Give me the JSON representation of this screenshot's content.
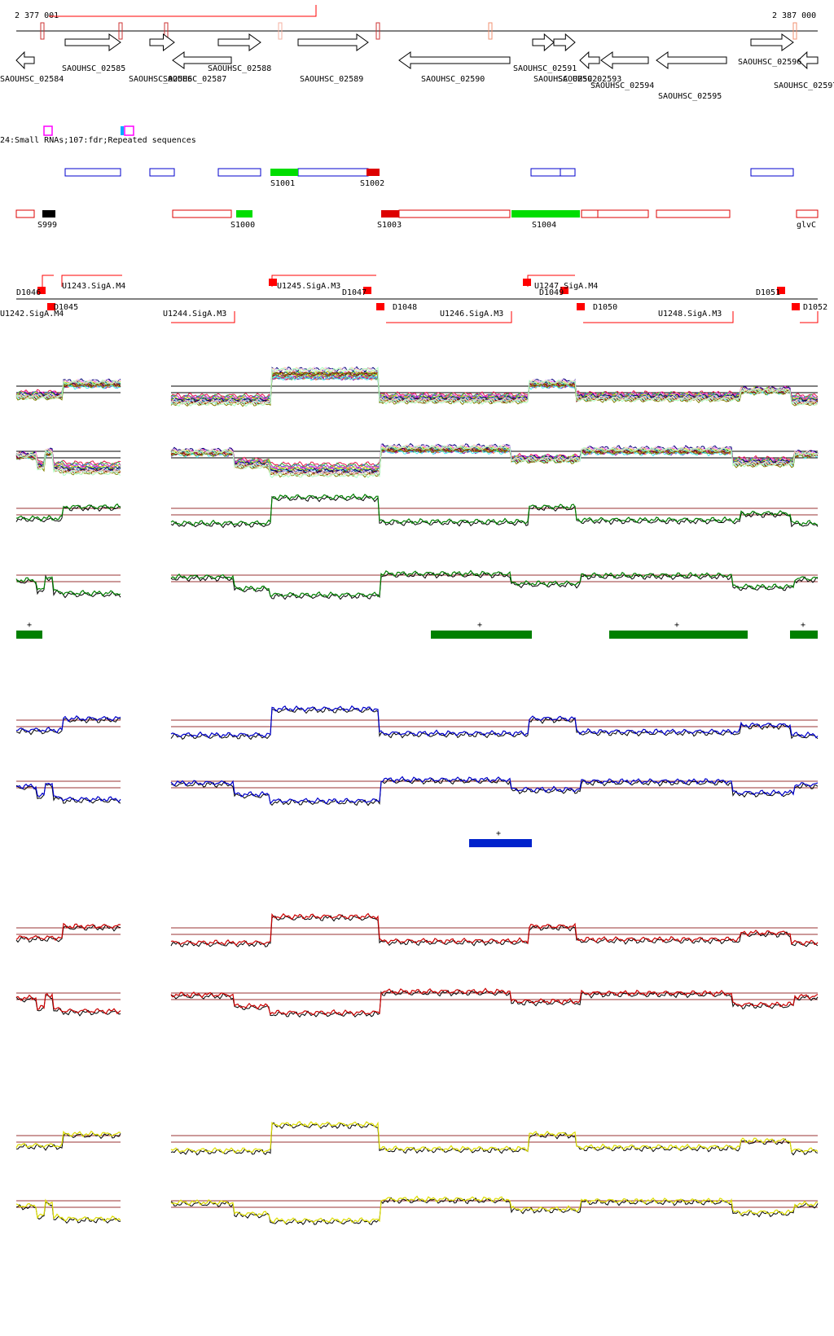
{
  "coordinates": {
    "start_label": "2 377 001",
    "end_label": "2 387 000"
  },
  "genes": [
    {
      "label": "SAOUHSC_02584",
      "strand": "-"
    },
    {
      "label": "SAOUHSC_02585",
      "strand": "+"
    },
    {
      "label": "SAOUHSC_02586",
      "strand": "+"
    },
    {
      "label": "SAOUHSC_02587",
      "strand": "-"
    },
    {
      "label": "SAOUHSC_02588",
      "strand": "+"
    },
    {
      "label": "SAOUHSC_02589",
      "strand": "+"
    },
    {
      "label": "SAOUHSC_02590",
      "strand": "-"
    },
    {
      "label": "SAOUHSC_02591",
      "strand": "+"
    },
    {
      "label": "SAOUHSC_02592",
      "strand": "+"
    },
    {
      "label": "SAOUHSC_02593",
      "strand": "-"
    },
    {
      "label": "SAOUHSC_02594",
      "strand": "-"
    },
    {
      "label": "SAOUHSC_02595",
      "strand": "-"
    },
    {
      "label": "SAOUHSC_02596",
      "strand": "+"
    },
    {
      "label": "SAOUHSC_02597",
      "strand": "-"
    }
  ],
  "legend_text": "24:Small RNAs;107:fdr;Repeated sequences",
  "segments_plus": [
    "S1001",
    "S1002"
  ],
  "segments_minus": [
    "S999",
    "S1000",
    "S1003",
    "S1004",
    "glvC"
  ],
  "promoters": [
    "D1046",
    "U1243.SigA.M4",
    "U1245.SigA.M3",
    "D1047",
    "U1247.SigA.M4",
    "D1049",
    "D1051",
    "D1045",
    "U1244.SigA.M3",
    "D1048",
    "U1246.SigA.M3",
    "D1050",
    "U1248.SigA.M3",
    "D1052",
    "U1242.SigA.M4"
  ],
  "plus_marks": [
    "+",
    "+",
    "+",
    "+",
    "+"
  ],
  "colors": {
    "gene_outline": "#000000",
    "segment_plus": "#0000cc",
    "segment_minus": "#dd0000",
    "segment_green": "#00dd00",
    "promoter": "#ff0000",
    "track_green": "#008000",
    "track_blue": "#0000cc",
    "track_red": "#cc0000",
    "track_yellow": "#dddd00",
    "threshold": "#993333"
  }
}
